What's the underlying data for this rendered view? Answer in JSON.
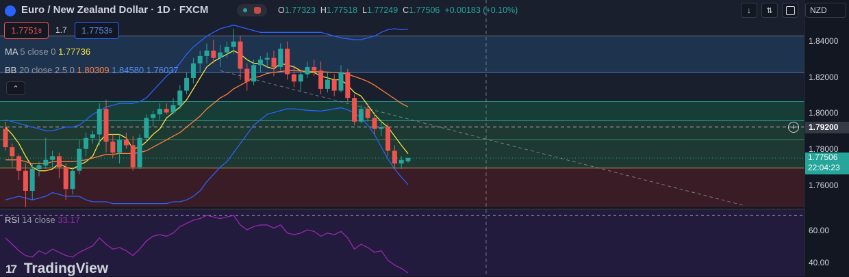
{
  "header": {
    "title": "Euro / New Zealand Dollar · 1D · FXCM",
    "ohlc": {
      "o_label": "O",
      "o": "1.77323",
      "h_label": "H",
      "h": "1.77518",
      "l_label": "L",
      "l": "1.77249",
      "c_label": "C",
      "c": "1.77506",
      "change": "+0.00183 (+0.10%)"
    },
    "sell_price": {
      "main": "1.7751",
      "sup": "8"
    },
    "spread": "1.7",
    "buy_price": {
      "main": "1.7753",
      "sup": "5"
    }
  },
  "indicators": {
    "ma": {
      "name": "MA",
      "params": "5 close 0",
      "value": "1.77736"
    },
    "bb": {
      "name": "BB",
      "params": "20 close 2.5 0",
      "basis": "1.80309",
      "upper": "1.84580",
      "lower": "1.76037"
    },
    "rsi": {
      "name": "RSI",
      "params": "14 close",
      "value": "33.17"
    }
  },
  "currency_select": "NZD",
  "price_axis": {
    "ticks": [
      "1.84000",
      "1.82000",
      "1.80000",
      "1.78000",
      "1.76000"
    ],
    "crosshair_price": "1.79200",
    "last_price": "1.77506",
    "countdown": "22:04:23"
  },
  "rsi_axis": {
    "ticks": [
      "60.00",
      "40.00"
    ]
  },
  "brand": "TradingView",
  "colors": {
    "background": "#131722",
    "up": "#26a69a",
    "down": "#ef5350",
    "ma": "#f5e642",
    "bb_basis": "#ff7f3f",
    "bb_band": "#2962ff",
    "rsi": "#9c27b0",
    "zone_blue": "#1e3a5f",
    "zone_green": "#1b4a3e",
    "zone_red": "#4a1f26",
    "rsi_bg": "#2a1f48"
  },
  "icons": {
    "symbol": "flag-icon",
    "down": "arrow-down-icon",
    "expand": "collapse-arrows-icon",
    "fullscreen": "fullscreen-icon",
    "collapse": "chevron-up-icon",
    "plus": "plus-circle-icon"
  },
  "chart_data": {
    "type": "candlestick",
    "title": "Euro / New Zealand Dollar · 1D · FXCM",
    "ylim": [
      1.745,
      1.848
    ],
    "candles": [
      {
        "o": 1.791,
        "h": 1.795,
        "l": 1.779,
        "c": 1.781
      },
      {
        "o": 1.781,
        "h": 1.783,
        "l": 1.77,
        "c": 1.776
      },
      {
        "o": 1.776,
        "h": 1.777,
        "l": 1.763,
        "c": 1.768
      },
      {
        "o": 1.768,
        "h": 1.772,
        "l": 1.748,
        "c": 1.757
      },
      {
        "o": 1.757,
        "h": 1.772,
        "l": 1.752,
        "c": 1.769
      },
      {
        "o": 1.769,
        "h": 1.773,
        "l": 1.765,
        "c": 1.771
      },
      {
        "o": 1.771,
        "h": 1.786,
        "l": 1.769,
        "c": 1.774
      },
      {
        "o": 1.774,
        "h": 1.779,
        "l": 1.77,
        "c": 1.776
      },
      {
        "o": 1.776,
        "h": 1.778,
        "l": 1.764,
        "c": 1.77
      },
      {
        "o": 1.77,
        "h": 1.772,
        "l": 1.752,
        "c": 1.758
      },
      {
        "o": 1.758,
        "h": 1.77,
        "l": 1.755,
        "c": 1.768
      },
      {
        "o": 1.768,
        "h": 1.785,
        "l": 1.766,
        "c": 1.78
      },
      {
        "o": 1.78,
        "h": 1.789,
        "l": 1.776,
        "c": 1.786
      },
      {
        "o": 1.786,
        "h": 1.79,
        "l": 1.783,
        "c": 1.788
      },
      {
        "o": 1.788,
        "h": 1.805,
        "l": 1.782,
        "c": 1.802
      },
      {
        "o": 1.802,
        "h": 1.807,
        "l": 1.778,
        "c": 1.784
      },
      {
        "o": 1.784,
        "h": 1.788,
        "l": 1.775,
        "c": 1.778
      },
      {
        "o": 1.778,
        "h": 1.788,
        "l": 1.772,
        "c": 1.785
      },
      {
        "o": 1.785,
        "h": 1.789,
        "l": 1.78,
        "c": 1.782
      },
      {
        "o": 1.782,
        "h": 1.787,
        "l": 1.768,
        "c": 1.77
      },
      {
        "o": 1.77,
        "h": 1.788,
        "l": 1.769,
        "c": 1.786
      },
      {
        "o": 1.786,
        "h": 1.799,
        "l": 1.784,
        "c": 1.797
      },
      {
        "o": 1.797,
        "h": 1.801,
        "l": 1.792,
        "c": 1.799
      },
      {
        "o": 1.799,
        "h": 1.805,
        "l": 1.796,
        "c": 1.802
      },
      {
        "o": 1.802,
        "h": 1.805,
        "l": 1.799,
        "c": 1.8
      },
      {
        "o": 1.8,
        "h": 1.808,
        "l": 1.799,
        "c": 1.804
      },
      {
        "o": 1.804,
        "h": 1.815,
        "l": 1.802,
        "c": 1.812
      },
      {
        "o": 1.812,
        "h": 1.822,
        "l": 1.81,
        "c": 1.819
      },
      {
        "o": 1.819,
        "h": 1.83,
        "l": 1.816,
        "c": 1.827
      },
      {
        "o": 1.827,
        "h": 1.834,
        "l": 1.822,
        "c": 1.831
      },
      {
        "o": 1.831,
        "h": 1.838,
        "l": 1.827,
        "c": 1.834
      },
      {
        "o": 1.834,
        "h": 1.84,
        "l": 1.827,
        "c": 1.83
      },
      {
        "o": 1.83,
        "h": 1.837,
        "l": 1.825,
        "c": 1.833
      },
      {
        "o": 1.833,
        "h": 1.839,
        "l": 1.83,
        "c": 1.836
      },
      {
        "o": 1.836,
        "h": 1.846,
        "l": 1.832,
        "c": 1.839
      },
      {
        "o": 1.839,
        "h": 1.842,
        "l": 1.818,
        "c": 1.824
      },
      {
        "o": 1.824,
        "h": 1.827,
        "l": 1.812,
        "c": 1.817
      },
      {
        "o": 1.817,
        "h": 1.829,
        "l": 1.815,
        "c": 1.826
      },
      {
        "o": 1.826,
        "h": 1.831,
        "l": 1.822,
        "c": 1.829
      },
      {
        "o": 1.829,
        "h": 1.833,
        "l": 1.825,
        "c": 1.83
      },
      {
        "o": 1.83,
        "h": 1.834,
        "l": 1.82,
        "c": 1.825
      },
      {
        "o": 1.825,
        "h": 1.838,
        "l": 1.823,
        "c": 1.835
      },
      {
        "o": 1.835,
        "h": 1.839,
        "l": 1.818,
        "c": 1.821
      },
      {
        "o": 1.821,
        "h": 1.826,
        "l": 1.814,
        "c": 1.817
      },
      {
        "o": 1.817,
        "h": 1.823,
        "l": 1.812,
        "c": 1.821
      },
      {
        "o": 1.821,
        "h": 1.828,
        "l": 1.819,
        "c": 1.825
      },
      {
        "o": 1.825,
        "h": 1.829,
        "l": 1.82,
        "c": 1.823
      },
      {
        "o": 1.823,
        "h": 1.828,
        "l": 1.81,
        "c": 1.813
      },
      {
        "o": 1.813,
        "h": 1.822,
        "l": 1.811,
        "c": 1.818
      },
      {
        "o": 1.818,
        "h": 1.821,
        "l": 1.809,
        "c": 1.812
      },
      {
        "o": 1.812,
        "h": 1.826,
        "l": 1.811,
        "c": 1.822
      },
      {
        "o": 1.822,
        "h": 1.824,
        "l": 1.806,
        "c": 1.808
      },
      {
        "o": 1.808,
        "h": 1.81,
        "l": 1.793,
        "c": 1.795
      },
      {
        "o": 1.795,
        "h": 1.804,
        "l": 1.794,
        "c": 1.802
      },
      {
        "o": 1.802,
        "h": 1.805,
        "l": 1.795,
        "c": 1.797
      },
      {
        "o": 1.797,
        "h": 1.8,
        "l": 1.788,
        "c": 1.791
      },
      {
        "o": 1.791,
        "h": 1.796,
        "l": 1.787,
        "c": 1.792
      },
      {
        "o": 1.792,
        "h": 1.794,
        "l": 1.776,
        "c": 1.779
      },
      {
        "o": 1.779,
        "h": 1.782,
        "l": 1.769,
        "c": 1.772
      },
      {
        "o": 1.772,
        "h": 1.776,
        "l": 1.769,
        "c": 1.774
      },
      {
        "o": 1.7732,
        "h": 1.7752,
        "l": 1.7725,
        "c": 1.7751
      }
    ],
    "series": [
      {
        "name": "MA 5 close 0",
        "values": [
          1.792,
          1.788,
          1.783,
          1.776,
          1.77,
          1.768,
          1.768,
          1.769,
          1.772,
          1.77,
          1.769,
          1.771,
          1.773,
          1.776,
          1.784,
          1.788,
          1.788,
          1.788,
          1.786,
          1.78,
          1.781,
          1.784,
          1.788,
          1.791,
          1.797,
          1.8,
          1.803,
          1.807,
          1.813,
          1.819,
          1.825,
          1.828,
          1.83,
          1.832,
          1.834,
          1.832,
          1.829,
          1.827,
          1.827,
          1.825,
          1.824,
          1.827,
          1.826,
          1.825,
          1.823,
          1.822,
          1.822,
          1.82,
          1.819,
          1.818,
          1.818,
          1.815,
          1.811,
          1.809,
          1.804,
          1.799,
          1.795,
          1.792,
          1.787,
          1.782,
          1.7774
        ]
      },
      {
        "name": "BB basis",
        "values": [
          1.774,
          1.774,
          1.774,
          1.773,
          1.772,
          1.772,
          1.772,
          1.773,
          1.773,
          1.773,
          1.773,
          1.7735,
          1.774,
          1.775,
          1.776,
          1.777,
          1.777,
          1.7775,
          1.7775,
          1.7775,
          1.778,
          1.779,
          1.781,
          1.783,
          1.785,
          1.787,
          1.789,
          1.792,
          1.795,
          1.798,
          1.802,
          1.805,
          1.808,
          1.81,
          1.813,
          1.815,
          1.817,
          1.819,
          1.82,
          1.8215,
          1.822,
          1.8225,
          1.823,
          1.823,
          1.8228,
          1.8226,
          1.8225,
          1.8224,
          1.8222,
          1.822,
          1.8218,
          1.821,
          1.8198,
          1.8185,
          1.817,
          1.815,
          1.8125,
          1.81,
          1.8075,
          1.805,
          1.8031
        ]
      },
      {
        "name": "BB upper",
        "values": [
          1.796,
          1.795,
          1.794,
          1.793,
          1.792,
          1.791,
          1.79,
          1.79,
          1.791,
          1.792,
          1.792,
          1.793,
          1.796,
          1.799,
          1.801,
          1.803,
          1.804,
          1.805,
          1.805,
          1.805,
          1.806,
          1.808,
          1.812,
          1.816,
          1.82,
          1.823,
          1.827,
          1.832,
          1.836,
          1.839,
          1.842,
          1.844,
          1.846,
          1.847,
          1.848,
          1.847,
          1.846,
          1.845,
          1.844,
          1.844,
          1.844,
          1.844,
          1.844,
          1.844,
          1.844,
          1.844,
          1.844,
          1.844,
          1.843,
          1.842,
          1.841,
          1.8405,
          1.84,
          1.84,
          1.841,
          1.842,
          1.844,
          1.8455,
          1.846,
          1.8455,
          1.8458
        ]
      },
      {
        "name": "BB lower",
        "values": [
          1.752,
          1.753,
          1.754,
          1.753,
          1.752,
          1.753,
          1.754,
          1.756,
          1.755,
          1.754,
          1.754,
          1.754,
          1.752,
          1.751,
          1.751,
          1.751,
          1.75,
          1.75,
          1.75,
          1.75,
          1.75,
          1.75,
          1.75,
          1.75,
          1.75,
          1.751,
          1.751,
          1.752,
          1.754,
          1.757,
          1.762,
          1.766,
          1.77,
          1.773,
          1.778,
          1.783,
          1.788,
          1.793,
          1.796,
          1.799,
          1.8,
          1.801,
          1.802,
          1.802,
          1.8016,
          1.8012,
          1.801,
          1.8008,
          1.8014,
          1.802,
          1.8026,
          1.8015,
          1.7996,
          1.797,
          1.793,
          1.788,
          1.781,
          1.7745,
          1.769,
          1.7645,
          1.7604
        ]
      }
    ],
    "rsi": {
      "name": "RSI 14 close",
      "ylim": [
        32,
        72
      ],
      "values": [
        55,
        51,
        47,
        44,
        43,
        47,
        45,
        48,
        46,
        44,
        43,
        46,
        48,
        50,
        55,
        51,
        48,
        49,
        47,
        44,
        48,
        53,
        56,
        57,
        56,
        58,
        62,
        64,
        66,
        67,
        69,
        68,
        67,
        68,
        69,
        63,
        60,
        62,
        63,
        63,
        61,
        63,
        58,
        57,
        58,
        60,
        59,
        56,
        58,
        57,
        59,
        55,
        48,
        51,
        49,
        46,
        47,
        41,
        38,
        36,
        33.17
      ]
    },
    "zones": [
      {
        "from": 1.822,
        "to": 1.842,
        "color": "zone_blue"
      },
      {
        "from": 1.7955,
        "to": 1.806,
        "color": "zone_green"
      },
      {
        "from": 1.7695,
        "to": 1.7955,
        "color": "zone_green_light"
      },
      {
        "from": 1.748,
        "to": 1.7695,
        "color": "zone_red"
      }
    ],
    "levels": [
      1.842,
      1.822,
      1.806,
      1.7955,
      1.785,
      1.7695
    ],
    "dotted_level": 1.775,
    "crosshair_level": 1.792,
    "trendline": {
      "from": {
        "index": 32,
        "price": 1.823
      },
      "to": {
        "index": 110,
        "price": 1.749
      }
    },
    "y_ticks": [
      1.84,
      1.82,
      1.8,
      1.78,
      1.76
    ],
    "rsi_ticks": [
      60,
      40
    ]
  }
}
